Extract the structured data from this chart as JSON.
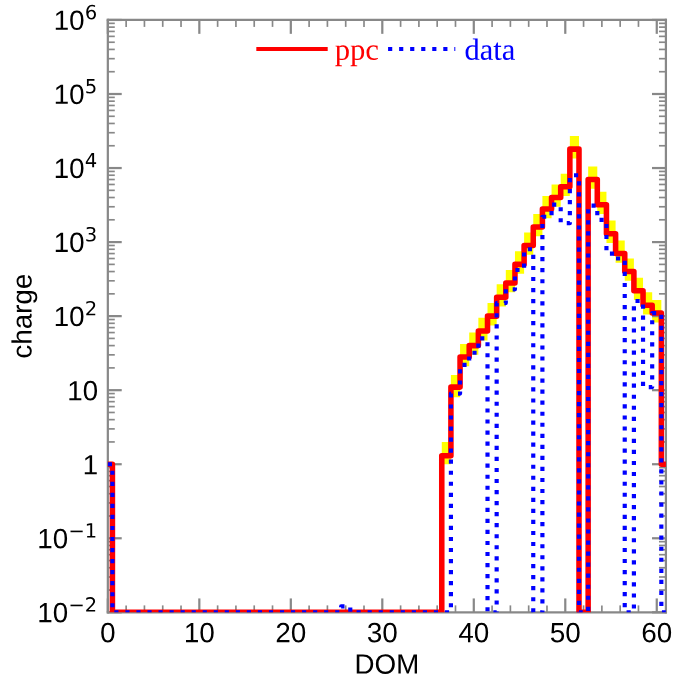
{
  "chart_data": {
    "type": "step",
    "xlabel": "DOM",
    "ylabel": "charge",
    "x": [
      0,
      1,
      2,
      3,
      4,
      5,
      6,
      7,
      8,
      9,
      10,
      11,
      12,
      13,
      14,
      15,
      16,
      17,
      18,
      19,
      20,
      21,
      22,
      23,
      24,
      25,
      26,
      27,
      28,
      29,
      30,
      31,
      32,
      33,
      34,
      35,
      36,
      37,
      38,
      39,
      40,
      41,
      42,
      43,
      44,
      45,
      46,
      47,
      48,
      49,
      50,
      51,
      52,
      53,
      54,
      55,
      56,
      57,
      58,
      59,
      60,
      61
    ],
    "series": [
      {
        "name": "ppc",
        "color": "#ff0000",
        "line_style": "solid",
        "values": [
          1,
          0.01,
          0.01,
          0.01,
          0.01,
          0.01,
          0.01,
          0.01,
          0.01,
          0.01,
          0.01,
          0.01,
          0.01,
          0.01,
          0.01,
          0.01,
          0.01,
          0.01,
          0.01,
          0.01,
          0.01,
          0.01,
          0.01,
          0.01,
          0.01,
          0.01,
          0.01,
          0.01,
          0.01,
          0.01,
          0.01,
          0.01,
          0.01,
          0.01,
          0.01,
          0.01,
          0.01,
          1.3,
          11,
          28,
          40,
          63,
          100,
          180,
          280,
          500,
          900,
          1600,
          2800,
          4000,
          5600,
          18000,
          0.01,
          7000,
          3200,
          1300,
          700,
          400,
          220,
          140,
          110,
          1
        ],
        "upper": [
          1,
          0.01,
          0.01,
          0.01,
          0.01,
          0.01,
          0.01,
          0.01,
          0.01,
          0.01,
          0.01,
          0.01,
          0.01,
          0.01,
          0.01,
          0.01,
          0.01,
          0.01,
          0.01,
          0.01,
          0.01,
          0.01,
          0.01,
          0.01,
          0.01,
          0.01,
          0.01,
          0.01,
          0.01,
          0.01,
          0.01,
          0.01,
          0.01,
          0.01,
          0.01,
          0.01,
          0.01,
          2,
          16,
          42,
          60,
          95,
          150,
          270,
          420,
          750,
          1350,
          2400,
          4200,
          6000,
          8400,
          27000,
          0.01,
          10500,
          4800,
          1950,
          1050,
          600,
          330,
          210,
          165,
          1
        ],
        "lower": [
          1,
          0.01,
          0.01,
          0.01,
          0.01,
          0.01,
          0.01,
          0.01,
          0.01,
          0.01,
          0.01,
          0.01,
          0.01,
          0.01,
          0.01,
          0.01,
          0.01,
          0.01,
          0.01,
          0.01,
          0.01,
          0.01,
          0.01,
          0.01,
          0.01,
          0.01,
          0.01,
          0.01,
          0.01,
          0.01,
          0.01,
          0.01,
          0.01,
          0.01,
          0.01,
          0.01,
          0.01,
          1,
          8,
          21,
          30,
          47,
          75,
          135,
          210,
          375,
          675,
          1200,
          2100,
          3000,
          4200,
          13500,
          0.01,
          5250,
          2400,
          975,
          525,
          300,
          165,
          105,
          82,
          1
        ]
      },
      {
        "name": "data",
        "color": "#0000ff",
        "line_style": "dotted",
        "values": [
          1,
          0.01,
          0.01,
          0.01,
          0.01,
          0.01,
          0.01,
          0.01,
          0.01,
          0.01,
          0.01,
          0.01,
          0.01,
          0.01,
          0.01,
          0.01,
          0.01,
          0.01,
          0.01,
          0.01,
          0.01,
          0.01,
          0.01,
          0.01,
          0.01,
          0.01,
          0.012,
          0.01,
          0.01,
          0.01,
          0.01,
          0.01,
          0.01,
          0.01,
          0.01,
          0.01,
          0.01,
          0.01,
          9,
          22,
          32,
          50,
          0.01,
          150,
          230,
          420,
          800,
          0.01,
          2200,
          3200,
          1800,
          8000,
          0.01,
          3100,
          2000,
          700,
          600,
          0.01,
          160,
          11,
          110,
          0.01
        ]
      }
    ],
    "xlim": [
      0,
      61
    ],
    "xticks": [
      0,
      10,
      20,
      30,
      40,
      50,
      60
    ],
    "log": "y",
    "ylim": [
      0.01,
      1000000
    ],
    "yticks": [
      {
        "value": 0.01,
        "label": "10$^{−2}$"
      },
      {
        "value": 0.1,
        "label": "10$^{−1}$"
      },
      1,
      10,
      {
        "value": 100,
        "label": "10$^{2}$"
      },
      {
        "value": 1000,
        "label": "10$^{3}$"
      },
      {
        "value": 10000,
        "label": "10$^{4}$"
      },
      {
        "value": 100000,
        "label": "10$^{5}$"
      },
      {
        "value": 1000000,
        "label": "10$^{6}$"
      }
    ],
    "grid": false,
    "legend": "top"
  }
}
